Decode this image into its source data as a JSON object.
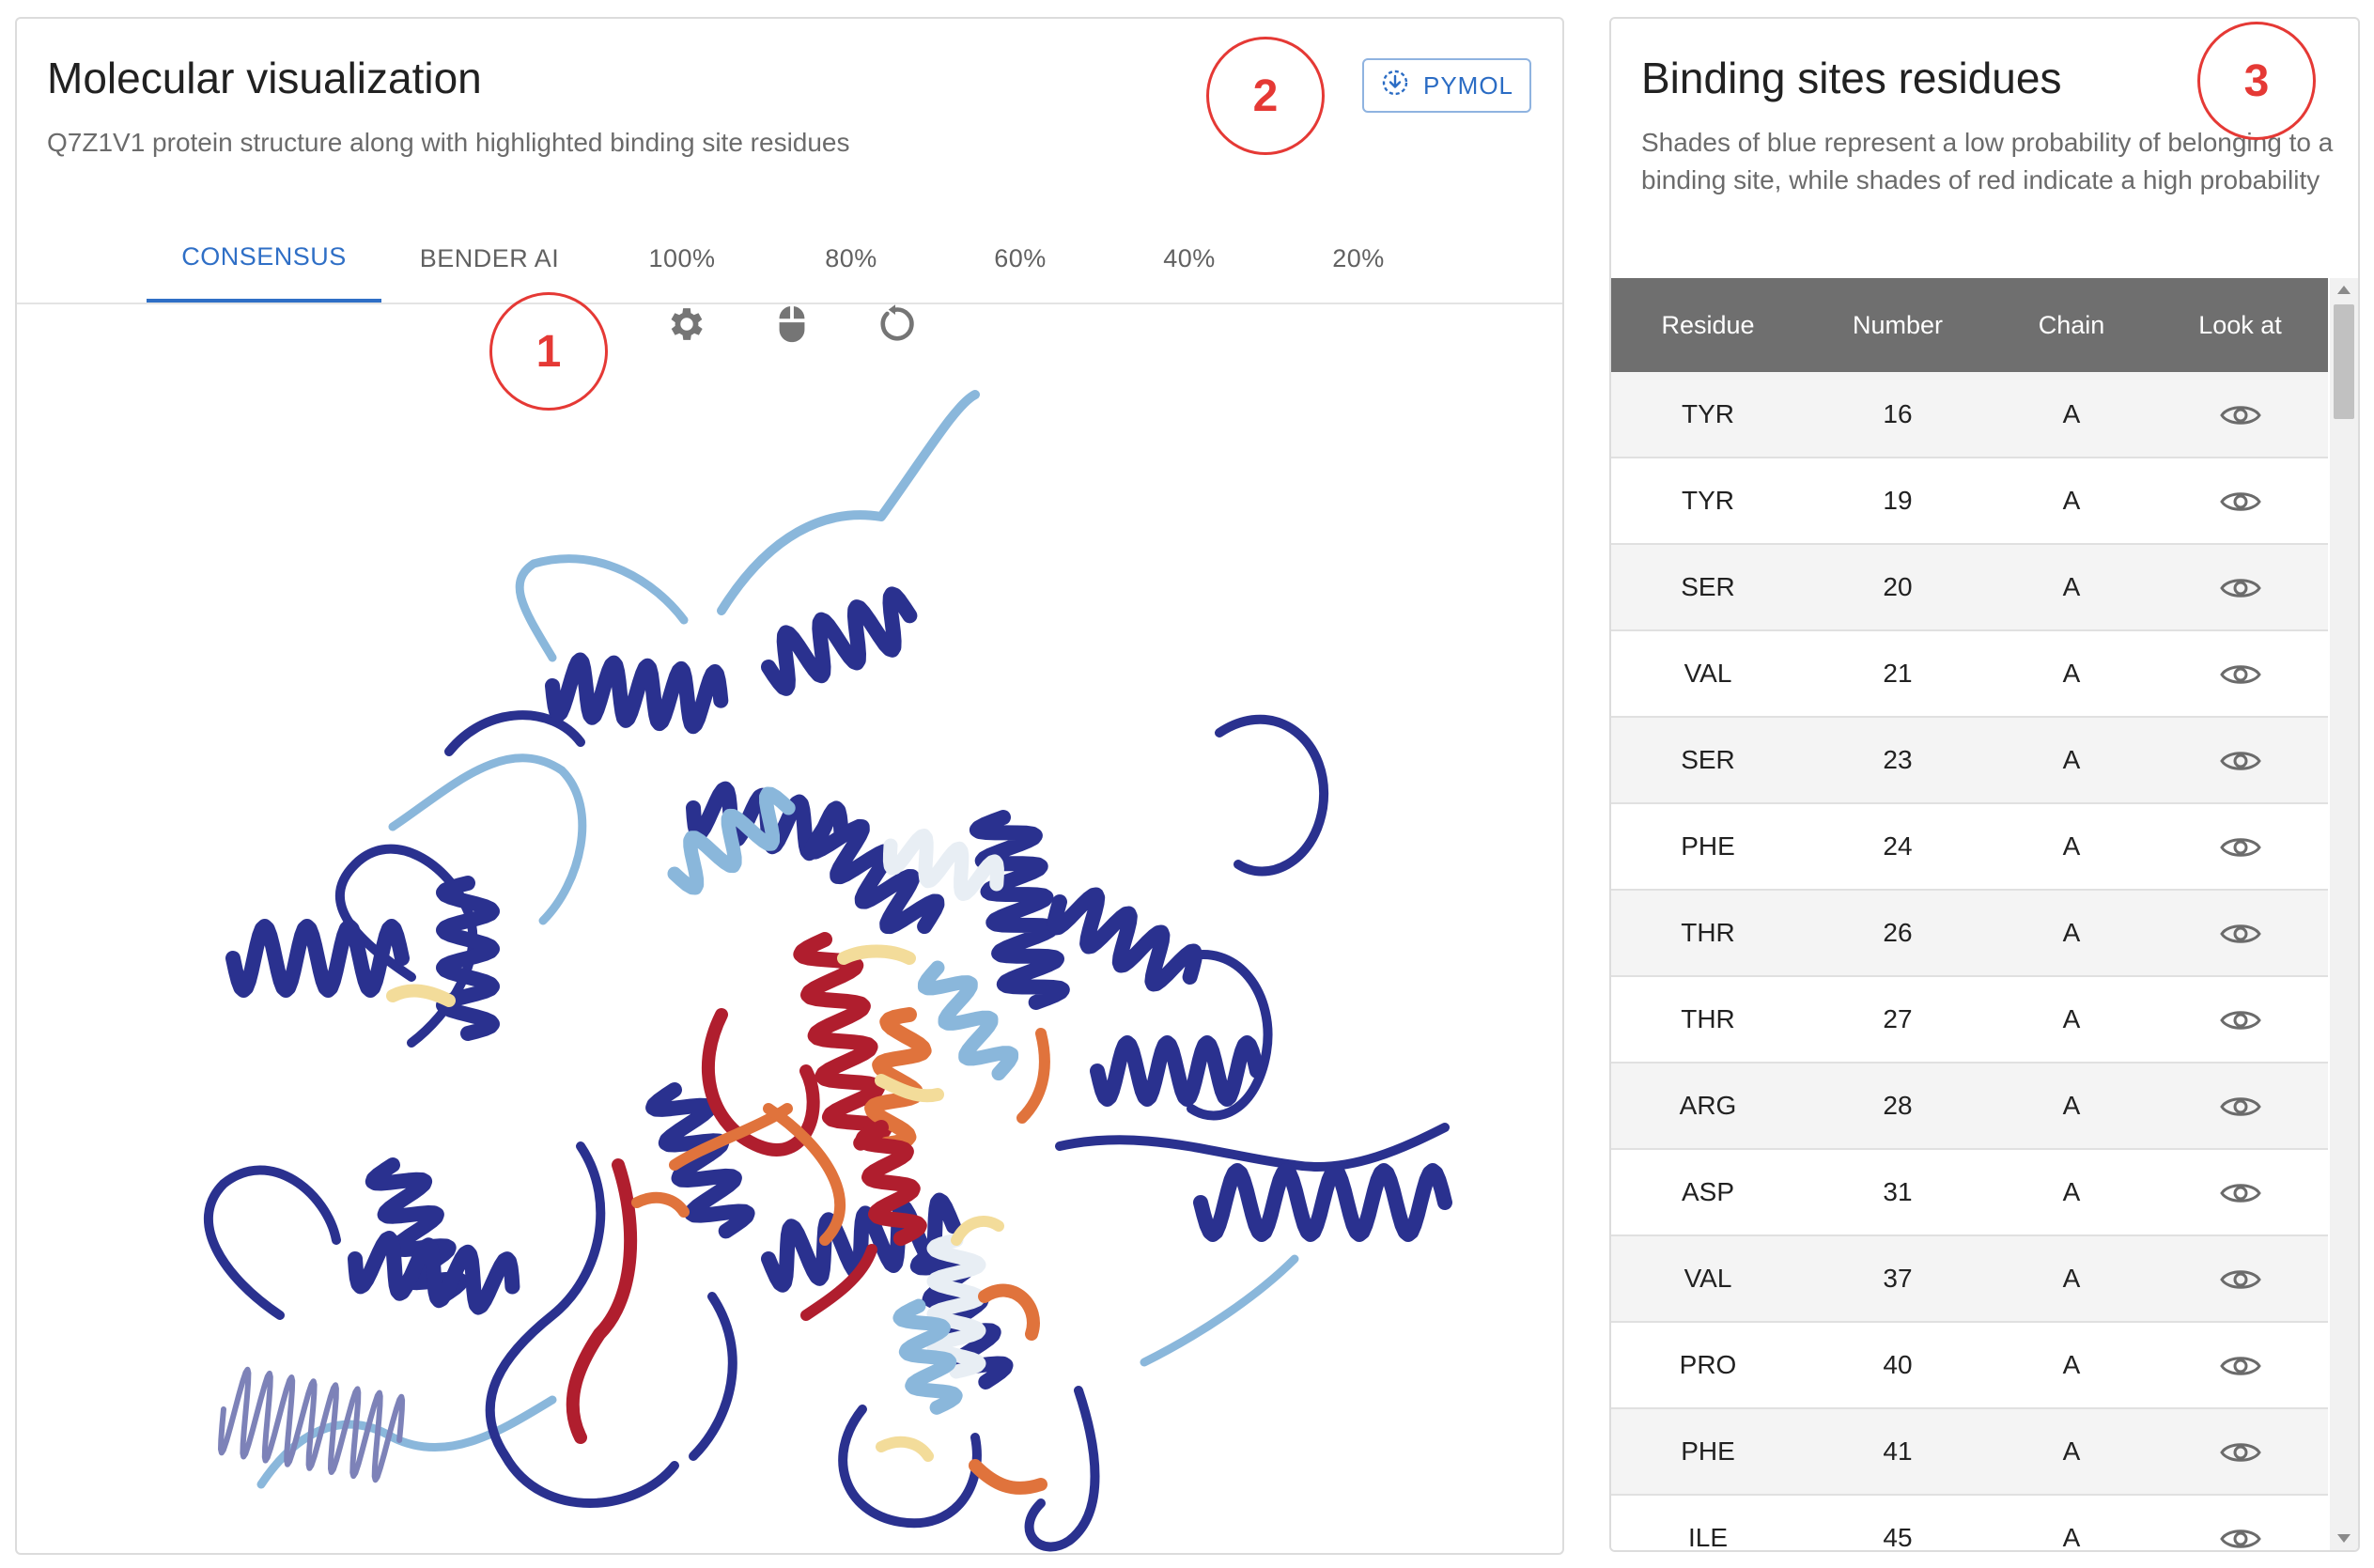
{
  "molecular": {
    "title": "Molecular visualization",
    "subtitle": "Q7Z1V1 protein structure along with highlighted binding site residues",
    "pymol_label": "PYMOL",
    "tabs": [
      {
        "label": "CONSENSUS",
        "active": true
      },
      {
        "label": "BENDER AI",
        "active": false
      },
      {
        "label": "100%",
        "active": false
      },
      {
        "label": "80%",
        "active": false
      },
      {
        "label": "60%",
        "active": false
      },
      {
        "label": "40%",
        "active": false
      },
      {
        "label": "20%",
        "active": false
      }
    ],
    "toolbar_icons": [
      "gear-icon",
      "mouse-icon",
      "reset-icon"
    ],
    "palette": {
      "dark_blue": "#2a318f",
      "light_blue": "#8ab7db",
      "pale": "#e8eef4",
      "yellow": "#f3dc9a",
      "orange": "#e0733c",
      "red": "#b01e2e"
    }
  },
  "callouts": [
    "1",
    "2",
    "3"
  ],
  "binding": {
    "title": "Binding sites residues",
    "subtitle": "Shades of blue represent a low probability of belonging to a binding site, while shades of red indicate a high probability",
    "columns": [
      "Residue",
      "Number",
      "Chain",
      "Look at"
    ],
    "rows": [
      {
        "residue": "TYR",
        "number": "16",
        "chain": "A"
      },
      {
        "residue": "TYR",
        "number": "19",
        "chain": "A"
      },
      {
        "residue": "SER",
        "number": "20",
        "chain": "A"
      },
      {
        "residue": "VAL",
        "number": "21",
        "chain": "A"
      },
      {
        "residue": "SER",
        "number": "23",
        "chain": "A"
      },
      {
        "residue": "PHE",
        "number": "24",
        "chain": "A"
      },
      {
        "residue": "THR",
        "number": "26",
        "chain": "A"
      },
      {
        "residue": "THR",
        "number": "27",
        "chain": "A"
      },
      {
        "residue": "ARG",
        "number": "28",
        "chain": "A"
      },
      {
        "residue": "ASP",
        "number": "31",
        "chain": "A"
      },
      {
        "residue": "VAL",
        "number": "37",
        "chain": "A"
      },
      {
        "residue": "PRO",
        "number": "40",
        "chain": "A"
      },
      {
        "residue": "PHE",
        "number": "41",
        "chain": "A"
      },
      {
        "residue": "ILE",
        "number": "45",
        "chain": "A"
      }
    ]
  }
}
